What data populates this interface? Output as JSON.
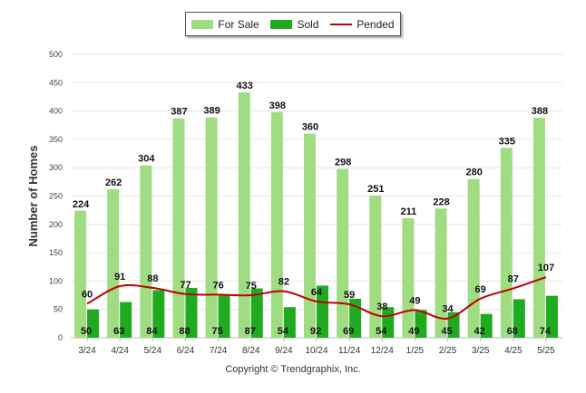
{
  "chart_data": {
    "type": "bar",
    "ylabel": "Number of Homes",
    "xlabel": "",
    "ylim": [
      0,
      500
    ],
    "yticks": [
      0,
      50,
      100,
      150,
      200,
      250,
      300,
      350,
      400,
      450,
      500
    ],
    "grid": true,
    "legend_position": "top-center",
    "categories": [
      "3/24",
      "4/24",
      "5/24",
      "6/24",
      "7/24",
      "8/24",
      "9/24",
      "10/24",
      "11/24",
      "12/24",
      "1/25",
      "2/25",
      "3/25",
      "4/25",
      "5/25"
    ],
    "series": [
      {
        "name": "For Sale",
        "type": "bar",
        "color": "#a0dc82",
        "values": [
          224,
          262,
          304,
          387,
          389,
          433,
          398,
          360,
          298,
          251,
          211,
          228,
          280,
          335,
          388
        ]
      },
      {
        "name": "Sold",
        "type": "bar",
        "color": "#1faa1f",
        "values": [
          50,
          63,
          84,
          88,
          75,
          87,
          54,
          92,
          69,
          54,
          49,
          45,
          42,
          68,
          74
        ]
      },
      {
        "name": "Pended",
        "type": "line",
        "color": "#c00000",
        "values": [
          60,
          91,
          88,
          77,
          76,
          75,
          82,
          64,
          59,
          38,
          49,
          34,
          69,
          87,
          107
        ]
      }
    ]
  },
  "copyright": "Copyright © Trendgraphix, Inc."
}
